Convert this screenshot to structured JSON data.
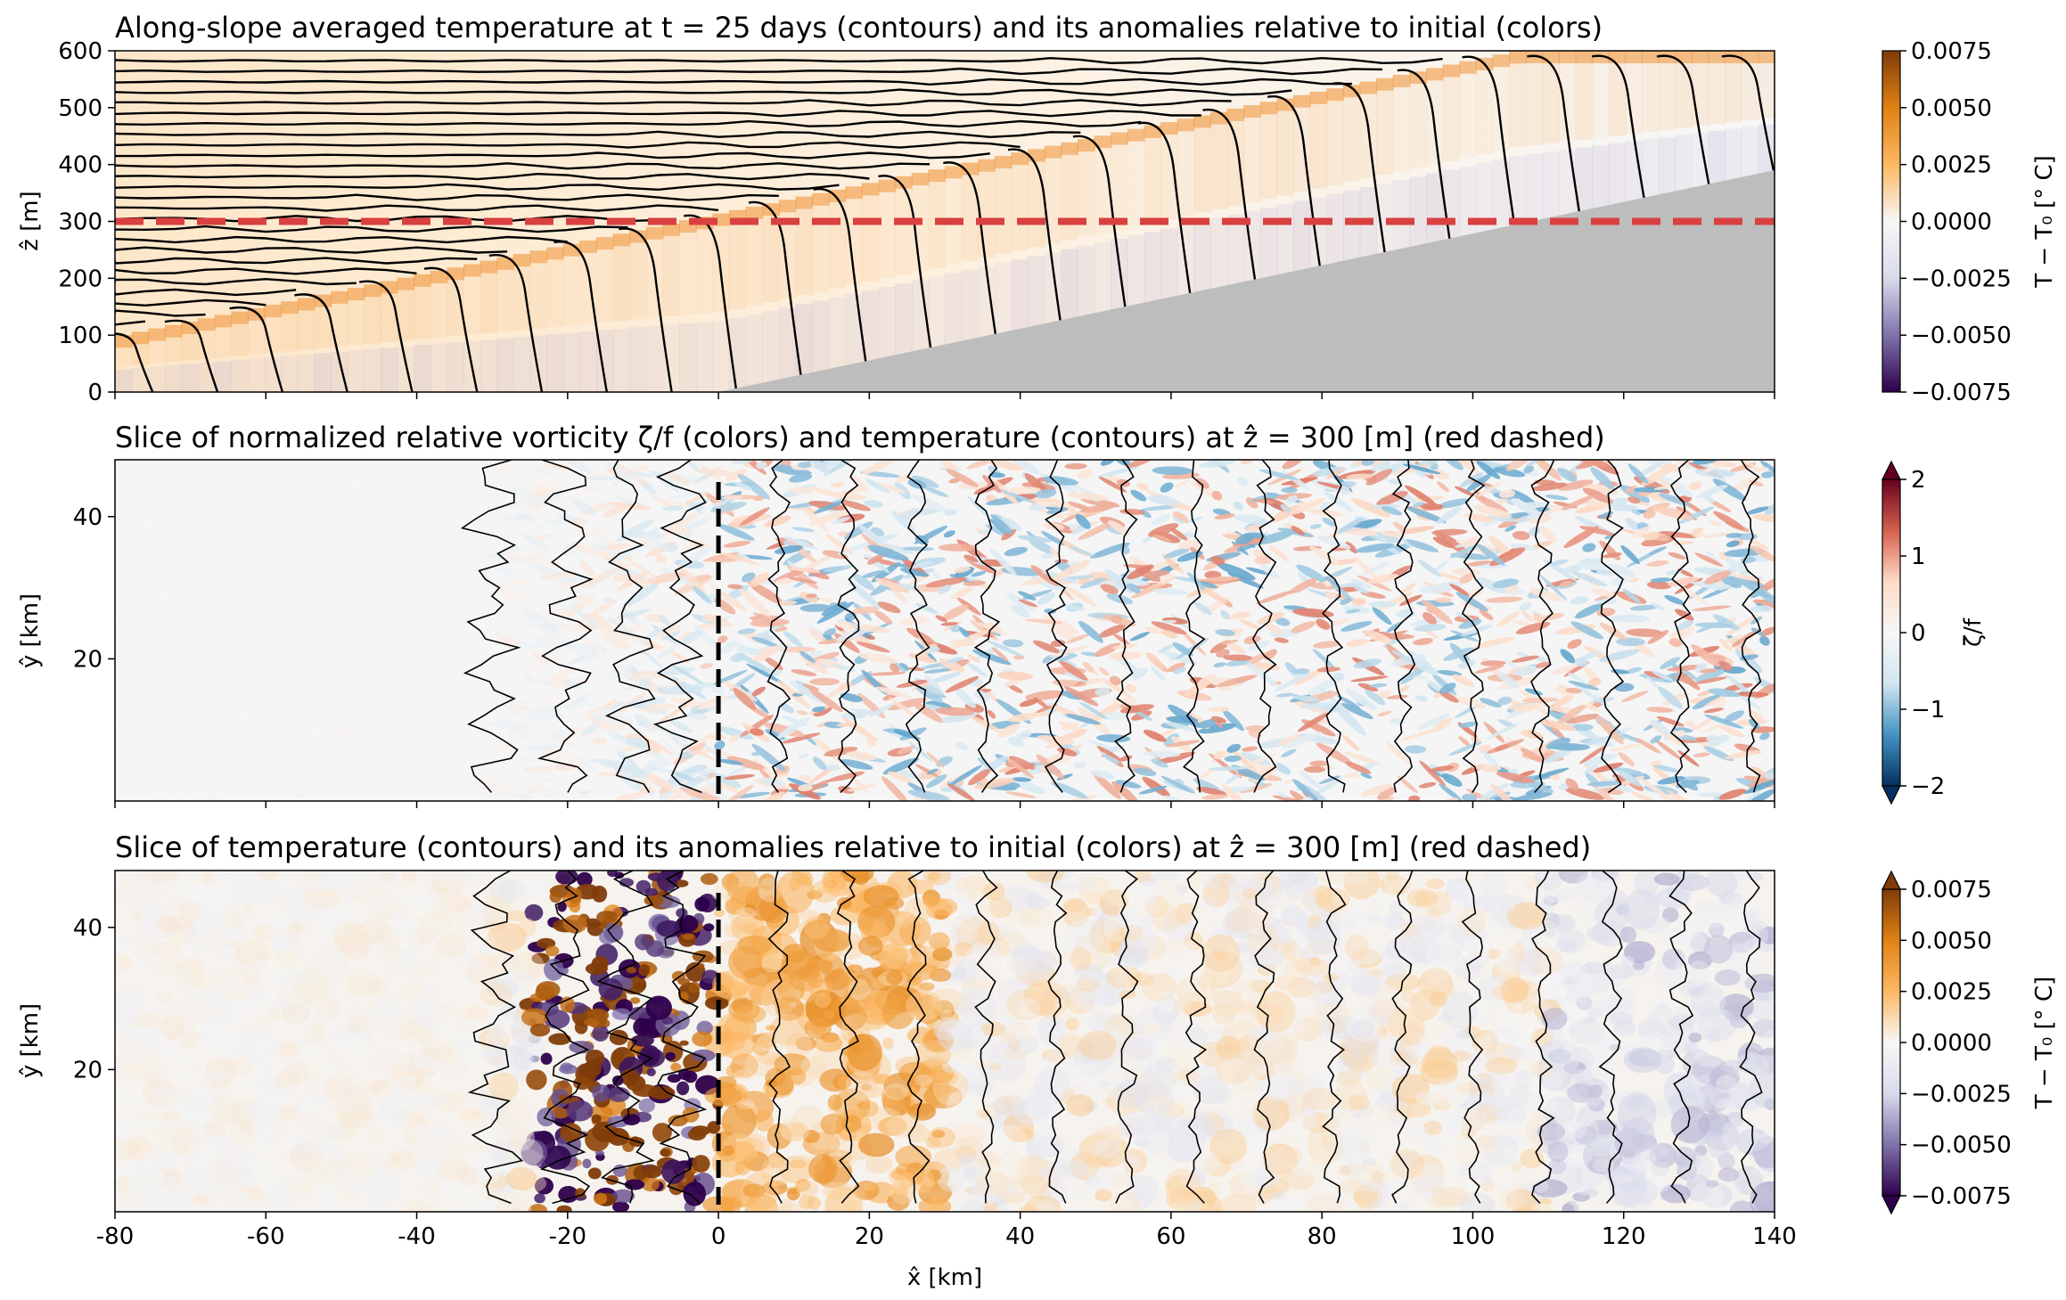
{
  "chart_data": [
    {
      "type": "heatmap",
      "title": "Along-slope averaged temperature at t = 25 days (contours) and its anomalies relative to initial (colors)",
      "ylabel": "ẑ [m]",
      "xlim": [
        -80,
        140
      ],
      "ylim": [
        0,
        600
      ],
      "yticks": [
        "0",
        "100",
        "200",
        "300",
        "400",
        "500",
        "600"
      ],
      "bottom_slope": {
        "x_start_km": 0,
        "z_start_m": 0,
        "x_end_km": 140,
        "z_end_m": 390
      },
      "reference_line_z_m": 300,
      "reference_line_color": "#d94040",
      "topography_color": "#bdbdbd",
      "colorbar": {
        "label": "T − T₀ [° C]",
        "ticks": [
          "0.0075",
          "0.0050",
          "0.0025",
          "0.0000",
          "−0.0025",
          "−0.0050",
          "−0.0075"
        ],
        "range": [
          -0.0075,
          0.0075
        ],
        "colors": [
          "#2d004b",
          "#8073ac",
          "#d8daeb",
          "#f7f7f7",
          "#fdb863",
          "#e08214",
          "#7f3b08"
        ]
      },
      "grid": false
    },
    {
      "type": "heatmap",
      "title": "Slice of normalized relative vorticity ζ/f (colors) and temperature (contours) at ẑ = 300 [m] (red dashed)",
      "ylabel": "ŷ [km]",
      "xlim": [
        -80,
        140
      ],
      "ylim": [
        0,
        48
      ],
      "yticks": [
        "20",
        "40"
      ],
      "reference_line_x_km": 0,
      "colorbar": {
        "label": "ζ/f",
        "ticks": [
          "2",
          "1",
          "0",
          "−1",
          "−2"
        ],
        "range": [
          -2,
          2
        ],
        "colors": [
          "#053061",
          "#4393c3",
          "#d1e5f0",
          "#f7f7f7",
          "#fddbc7",
          "#d6604d",
          "#67001f"
        ]
      },
      "grid": false
    },
    {
      "type": "heatmap",
      "title": "Slice of temperature (contours) and its anomalies relative to initial (colors) at ẑ = 300 [m] (red dashed)",
      "xlabel": "x̂ [km]",
      "ylabel": "ŷ [km]",
      "xlim": [
        -80,
        140
      ],
      "ylim": [
        0,
        48
      ],
      "xticks": [
        "-80",
        "-60",
        "-40",
        "-20",
        "0",
        "20",
        "40",
        "60",
        "80",
        "100",
        "120",
        "140"
      ],
      "yticks": [
        "20",
        "40"
      ],
      "reference_line_x_km": 0,
      "colorbar": {
        "label": "T − T₀ [° C]",
        "ticks": [
          "0.0075",
          "0.0050",
          "0.0025",
          "0.0000",
          "−0.0025",
          "−0.0050",
          "−0.0075"
        ],
        "range": [
          -0.0075,
          0.0075
        ],
        "colors": [
          "#2d004b",
          "#8073ac",
          "#d8daeb",
          "#f7f7f7",
          "#fdb863",
          "#e08214",
          "#7f3b08"
        ]
      },
      "grid": false
    }
  ]
}
